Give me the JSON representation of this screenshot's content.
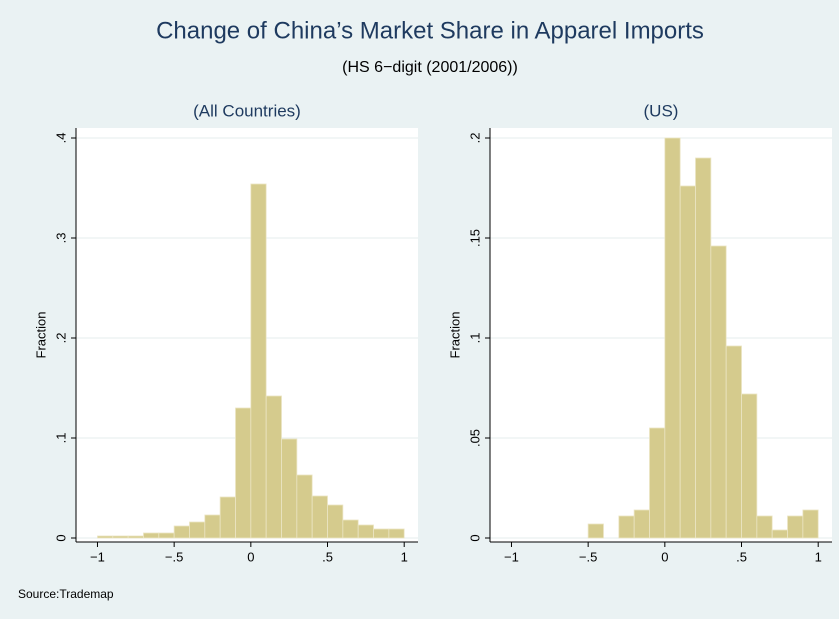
{
  "title": "Change of China’s Market Share in Apparel Imports",
  "subtitle": "(HS 6−digit (2001/2006))",
  "note": "Source:Trademap",
  "chart_data": [
    {
      "type": "histogram",
      "title": "(All Countries)",
      "ylabel": "Fraction",
      "color": "#d5cb8d",
      "bins": [
        -1,
        -0.9,
        -0.8,
        -0.7,
        -0.6,
        -0.5,
        -0.4,
        -0.3,
        -0.2,
        -0.1,
        0,
        0.1,
        0.2,
        0.3,
        0.4,
        0.5,
        0.6,
        0.7,
        0.8,
        0.9,
        1
      ],
      "values": [
        0.002,
        0.002,
        0.002,
        0.005,
        0.005,
        0.012,
        0.016,
        0.023,
        0.041,
        0.13,
        0.354,
        0.142,
        0.099,
        0.063,
        0.042,
        0.033,
        0.018,
        0.013,
        0.009,
        0.009
      ],
      "xlim": [
        -1.14,
        1.09
      ],
      "ylim": [
        -0.004,
        0.41
      ],
      "xticks": [
        {
          "value": -1,
          "label": "−1"
        },
        {
          "value": -0.5,
          "label": "−.5"
        },
        0,
        {
          "value": 0.5,
          "label": ".5"
        },
        1
      ],
      "yticks": [
        0,
        {
          "value": 0.1,
          "label": ".1"
        },
        {
          "value": 0.2,
          "label": ".2"
        },
        {
          "value": 0.3,
          "label": ".3"
        },
        {
          "value": 0.4,
          "label": ".4"
        }
      ],
      "grid": true
    },
    {
      "type": "histogram",
      "title": "(US)",
      "ylabel": "Fraction",
      "color": "#d5cb8d",
      "bins": [
        -0.5,
        -0.4,
        -0.3,
        -0.2,
        -0.1,
        0,
        0.1,
        0.2,
        0.3,
        0.4,
        0.5,
        0.6,
        0.7,
        0.8,
        0.9,
        1
      ],
      "values": [
        0.007,
        0,
        0.011,
        0.014,
        0.055,
        0.2,
        0.176,
        0.19,
        0.146,
        0.096,
        0.072,
        0.011,
        0.004,
        0.011,
        0.014
      ],
      "xlim": [
        -1.14,
        1.09
      ],
      "ylim": [
        -0.002,
        0.205
      ],
      "xticks": [
        {
          "value": -1,
          "label": "−1"
        },
        {
          "value": -0.5,
          "label": "−.5"
        },
        0,
        {
          "value": 0.5,
          "label": ".5"
        },
        1
      ],
      "yticks": [
        0,
        {
          "value": 0.05,
          "label": ".05"
        },
        {
          "value": 0.1,
          "label": ".1"
        },
        {
          "value": 0.15,
          "label": ".15"
        },
        {
          "value": 0.2,
          "label": ".2"
        }
      ],
      "grid": true
    }
  ]
}
